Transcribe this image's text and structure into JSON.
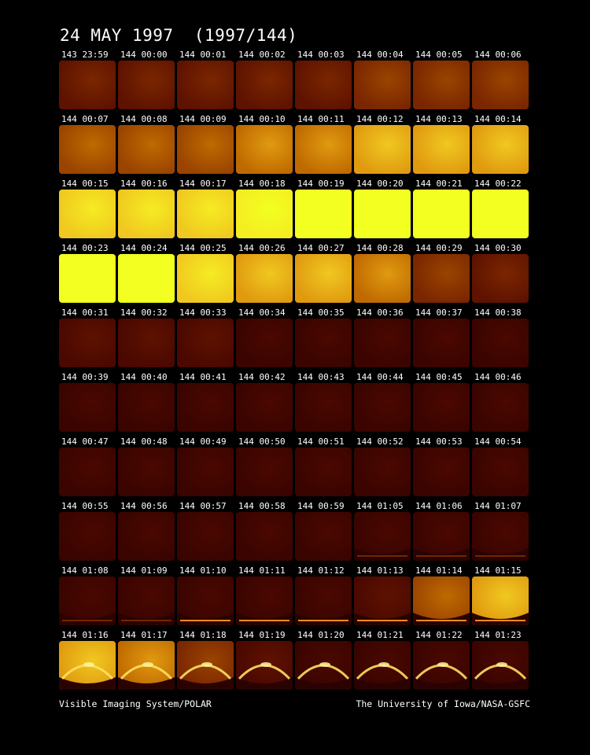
{
  "title": "24 MAY 1997  (1997/144)",
  "footer_left": "Visible Imaging System/POLAR",
  "footer_right": "The University of Iowa/NASA-GSFC",
  "palette": [
    "#3a0400",
    "#4a0800",
    "#5e1200",
    "#7a2600",
    "#9a4400",
    "#bf6a00",
    "#e09a10",
    "#f0c820",
    "#f5ec22",
    "#f2ff20"
  ],
  "frames": [
    {
      "time": "143 23:59",
      "brightness": 2,
      "aurora": 0
    },
    {
      "time": "144 00:00",
      "brightness": 2,
      "aurora": 0
    },
    {
      "time": "144 00:01",
      "brightness": 2,
      "aurora": 0
    },
    {
      "time": "144 00:02",
      "brightness": 2,
      "aurora": 0
    },
    {
      "time": "144 00:03",
      "brightness": 2,
      "aurora": 0
    },
    {
      "time": "144 00:04",
      "brightness": 3,
      "aurora": 0
    },
    {
      "time": "144 00:05",
      "brightness": 3,
      "aurora": 0
    },
    {
      "time": "144 00:06",
      "brightness": 3,
      "aurora": 0
    },
    {
      "time": "144 00:07",
      "brightness": 4,
      "aurora": 0
    },
    {
      "time": "144 00:08",
      "brightness": 4,
      "aurora": 0
    },
    {
      "time": "144 00:09",
      "brightness": 4,
      "aurora": 0
    },
    {
      "time": "144 00:10",
      "brightness": 5,
      "aurora": 0
    },
    {
      "time": "144 00:11",
      "brightness": 5,
      "aurora": 0
    },
    {
      "time": "144 00:12",
      "brightness": 6,
      "aurora": 0
    },
    {
      "time": "144 00:13",
      "brightness": 6,
      "aurora": 0
    },
    {
      "time": "144 00:14",
      "brightness": 6,
      "aurora": 0
    },
    {
      "time": "144 00:15",
      "brightness": 7,
      "aurora": 0
    },
    {
      "time": "144 00:16",
      "brightness": 7,
      "aurora": 0
    },
    {
      "time": "144 00:17",
      "brightness": 7,
      "aurora": 0
    },
    {
      "time": "144 00:18",
      "brightness": 8,
      "aurora": 0
    },
    {
      "time": "144 00:19",
      "brightness": 9,
      "aurora": 0
    },
    {
      "time": "144 00:20",
      "brightness": 9,
      "aurora": 0
    },
    {
      "time": "144 00:21",
      "brightness": 9,
      "aurora": 0
    },
    {
      "time": "144 00:22",
      "brightness": 9,
      "aurora": 0
    },
    {
      "time": "144 00:23",
      "brightness": 9,
      "aurora": 0
    },
    {
      "time": "144 00:24",
      "brightness": 9,
      "aurora": 0
    },
    {
      "time": "144 00:25",
      "brightness": 7,
      "aurora": 0
    },
    {
      "time": "144 00:26",
      "brightness": 6,
      "aurora": 0
    },
    {
      "time": "144 00:27",
      "brightness": 6,
      "aurora": 0
    },
    {
      "time": "144 00:28",
      "brightness": 5,
      "aurora": 0
    },
    {
      "time": "144 00:29",
      "brightness": 3,
      "aurora": 0
    },
    {
      "time": "144 00:30",
      "brightness": 2,
      "aurora": 0
    },
    {
      "time": "144 00:31",
      "brightness": 1,
      "aurora": 0
    },
    {
      "time": "144 00:32",
      "brightness": 1,
      "aurora": 0
    },
    {
      "time": "144 00:33",
      "brightness": 1,
      "aurora": 0
    },
    {
      "time": "144 00:34",
      "brightness": 0,
      "aurora": 0
    },
    {
      "time": "144 00:35",
      "brightness": 0,
      "aurora": 0
    },
    {
      "time": "144 00:36",
      "brightness": 0,
      "aurora": 0
    },
    {
      "time": "144 00:37",
      "brightness": 0,
      "aurora": 0
    },
    {
      "time": "144 00:38",
      "brightness": 0,
      "aurora": 0
    },
    {
      "time": "144 00:39",
      "brightness": 0,
      "aurora": 0
    },
    {
      "time": "144 00:40",
      "brightness": 0,
      "aurora": 0
    },
    {
      "time": "144 00:41",
      "brightness": 0,
      "aurora": 0
    },
    {
      "time": "144 00:42",
      "brightness": 0,
      "aurora": 0
    },
    {
      "time": "144 00:43",
      "brightness": 0,
      "aurora": 0
    },
    {
      "time": "144 00:44",
      "brightness": 0,
      "aurora": 0
    },
    {
      "time": "144 00:45",
      "brightness": 0,
      "aurora": 0
    },
    {
      "time": "144 00:46",
      "brightness": 0,
      "aurora": 0
    },
    {
      "time": "144 00:47",
      "brightness": 0,
      "aurora": 0
    },
    {
      "time": "144 00:48",
      "brightness": 0,
      "aurora": 0
    },
    {
      "time": "144 00:49",
      "brightness": 0,
      "aurora": 0
    },
    {
      "time": "144 00:50",
      "brightness": 0,
      "aurora": 0
    },
    {
      "time": "144 00:51",
      "brightness": 0,
      "aurora": 0
    },
    {
      "time": "144 00:52",
      "brightness": 0,
      "aurora": 0
    },
    {
      "time": "144 00:53",
      "brightness": 0,
      "aurora": 0
    },
    {
      "time": "144 00:54",
      "brightness": 0,
      "aurora": 0
    },
    {
      "time": "144 00:55",
      "brightness": 0,
      "aurora": 0
    },
    {
      "time": "144 00:56",
      "brightness": 0,
      "aurora": 0
    },
    {
      "time": "144 00:57",
      "brightness": 0,
      "aurora": 0
    },
    {
      "time": "144 00:58",
      "brightness": 0,
      "aurora": 0
    },
    {
      "time": "144 00:59",
      "brightness": 0,
      "aurora": 0
    },
    {
      "time": "144 01:05",
      "brightness": 0,
      "aurora": 1
    },
    {
      "time": "144 01:06",
      "brightness": 0,
      "aurora": 1
    },
    {
      "time": "144 01:07",
      "brightness": 0,
      "aurora": 1
    },
    {
      "time": "144 01:08",
      "brightness": 0,
      "aurora": 1
    },
    {
      "time": "144 01:09",
      "brightness": 0,
      "aurora": 1
    },
    {
      "time": "144 01:10",
      "brightness": 0,
      "aurora": 2
    },
    {
      "time": "144 01:11",
      "brightness": 0,
      "aurora": 2
    },
    {
      "time": "144 01:12",
      "brightness": 0,
      "aurora": 2
    },
    {
      "time": "144 01:13",
      "brightness": 1,
      "aurora": 2
    },
    {
      "time": "144 01:14",
      "brightness": 4,
      "aurora": 2
    },
    {
      "time": "144 01:15",
      "brightness": 6,
      "aurora": 2
    },
    {
      "time": "144 01:16",
      "brightness": 6,
      "aurora": 3
    },
    {
      "time": "144 01:17",
      "brightness": 5,
      "aurora": 3
    },
    {
      "time": "144 01:18",
      "brightness": 3,
      "aurora": 3
    },
    {
      "time": "144 01:19",
      "brightness": 1,
      "aurora": 3
    },
    {
      "time": "144 01:20",
      "brightness": 0,
      "aurora": 3
    },
    {
      "time": "144 01:21",
      "brightness": 0,
      "aurora": 3
    },
    {
      "time": "144 01:22",
      "brightness": 0,
      "aurora": 3
    },
    {
      "time": "144 01:23",
      "brightness": 0,
      "aurora": 3
    }
  ]
}
